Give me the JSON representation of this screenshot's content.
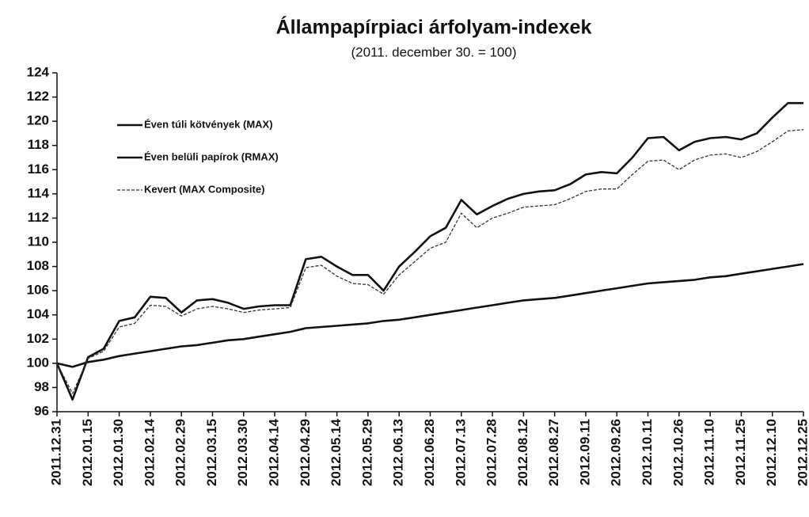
{
  "chart_data": {
    "type": "line",
    "title": "Állampapírpiaci árfolyam-indexek",
    "subtitle": "(2011. december 30. = 100)",
    "categories": [
      "2011.12.31",
      null,
      "2012.01.15",
      null,
      "2012.01.30",
      null,
      "2012.02.14",
      null,
      "2012.02.29",
      null,
      "2012.03.15",
      null,
      "2012.03.30",
      null,
      "2012.04.14",
      null,
      "2012.04.29",
      null,
      "2012.05.14",
      null,
      "2012.05.29",
      null,
      "2012.06.13",
      null,
      "2012.06.28",
      null,
      "2012.07.13",
      null,
      "2012.07.28",
      null,
      "2012.08.12",
      null,
      "2012.08.27",
      null,
      "2012.09.11",
      null,
      "2012.09.26",
      null,
      "2012.10.11",
      null,
      "2012.10.26",
      null,
      "2012.11.10",
      null,
      "2012.11.25",
      null,
      "2012.12.10",
      null,
      "2012.12.25"
    ],
    "series": [
      {
        "name": "Éven túli kötvények (MAX)",
        "color": "#111111",
        "line_style": "solid",
        "values": [
          100,
          97,
          100.5,
          101.2,
          103.5,
          103.8,
          105.5,
          105.4,
          104.2,
          105.2,
          105.3,
          105.0,
          104.5,
          104.7,
          104.8,
          104.8,
          108.6,
          108.8,
          108.0,
          107.3,
          107.3,
          106.0,
          108.0,
          109.2,
          110.5,
          111.2,
          113.5,
          112.3,
          113.0,
          113.6,
          114.0,
          114.2,
          114.3,
          114.8,
          115.6,
          115.8,
          115.7,
          117.0,
          118.6,
          118.7,
          117.6,
          118.3,
          118.6,
          118.7,
          118.5,
          119.0,
          120.3,
          121.5,
          121.5
        ]
      },
      {
        "name": "Éven belüli papírok (RMAX)",
        "color": "#111111",
        "line_style": "solid",
        "values": [
          100,
          99.7,
          100.1,
          100.3,
          100.6,
          100.8,
          101.0,
          101.2,
          101.4,
          101.5,
          101.7,
          101.9,
          102.0,
          102.2,
          102.4,
          102.6,
          102.9,
          103.0,
          103.1,
          103.2,
          103.3,
          103.5,
          103.6,
          103.8,
          104.0,
          104.2,
          104.4,
          104.6,
          104.8,
          105.0,
          105.2,
          105.3,
          105.4,
          105.6,
          105.8,
          106.0,
          106.2,
          106.4,
          106.6,
          106.7,
          106.8,
          106.9,
          107.1,
          107.2,
          107.4,
          107.6,
          107.8,
          108.0,
          108.2
        ]
      },
      {
        "name": "Kevert (MAX Composite)",
        "color": "#333333",
        "line_style": "dashed",
        "values": [
          100,
          97.5,
          100.4,
          101.0,
          103.0,
          103.3,
          104.8,
          104.7,
          103.9,
          104.5,
          104.7,
          104.5,
          104.2,
          104.4,
          104.5,
          104.6,
          107.9,
          108.1,
          107.2,
          106.6,
          106.5,
          105.7,
          107.3,
          108.4,
          109.5,
          110.0,
          112.4,
          111.2,
          112.0,
          112.4,
          112.9,
          113.0,
          113.1,
          113.6,
          114.2,
          114.4,
          114.4,
          115.6,
          116.7,
          116.8,
          116.0,
          116.8,
          117.2,
          117.3,
          117.0,
          117.5,
          118.3,
          119.2,
          119.3
        ]
      }
    ],
    "ylim": [
      96,
      124
    ],
    "yticks": [
      96,
      98,
      100,
      102,
      104,
      106,
      108,
      110,
      112,
      114,
      116,
      118,
      120,
      122,
      124
    ]
  }
}
